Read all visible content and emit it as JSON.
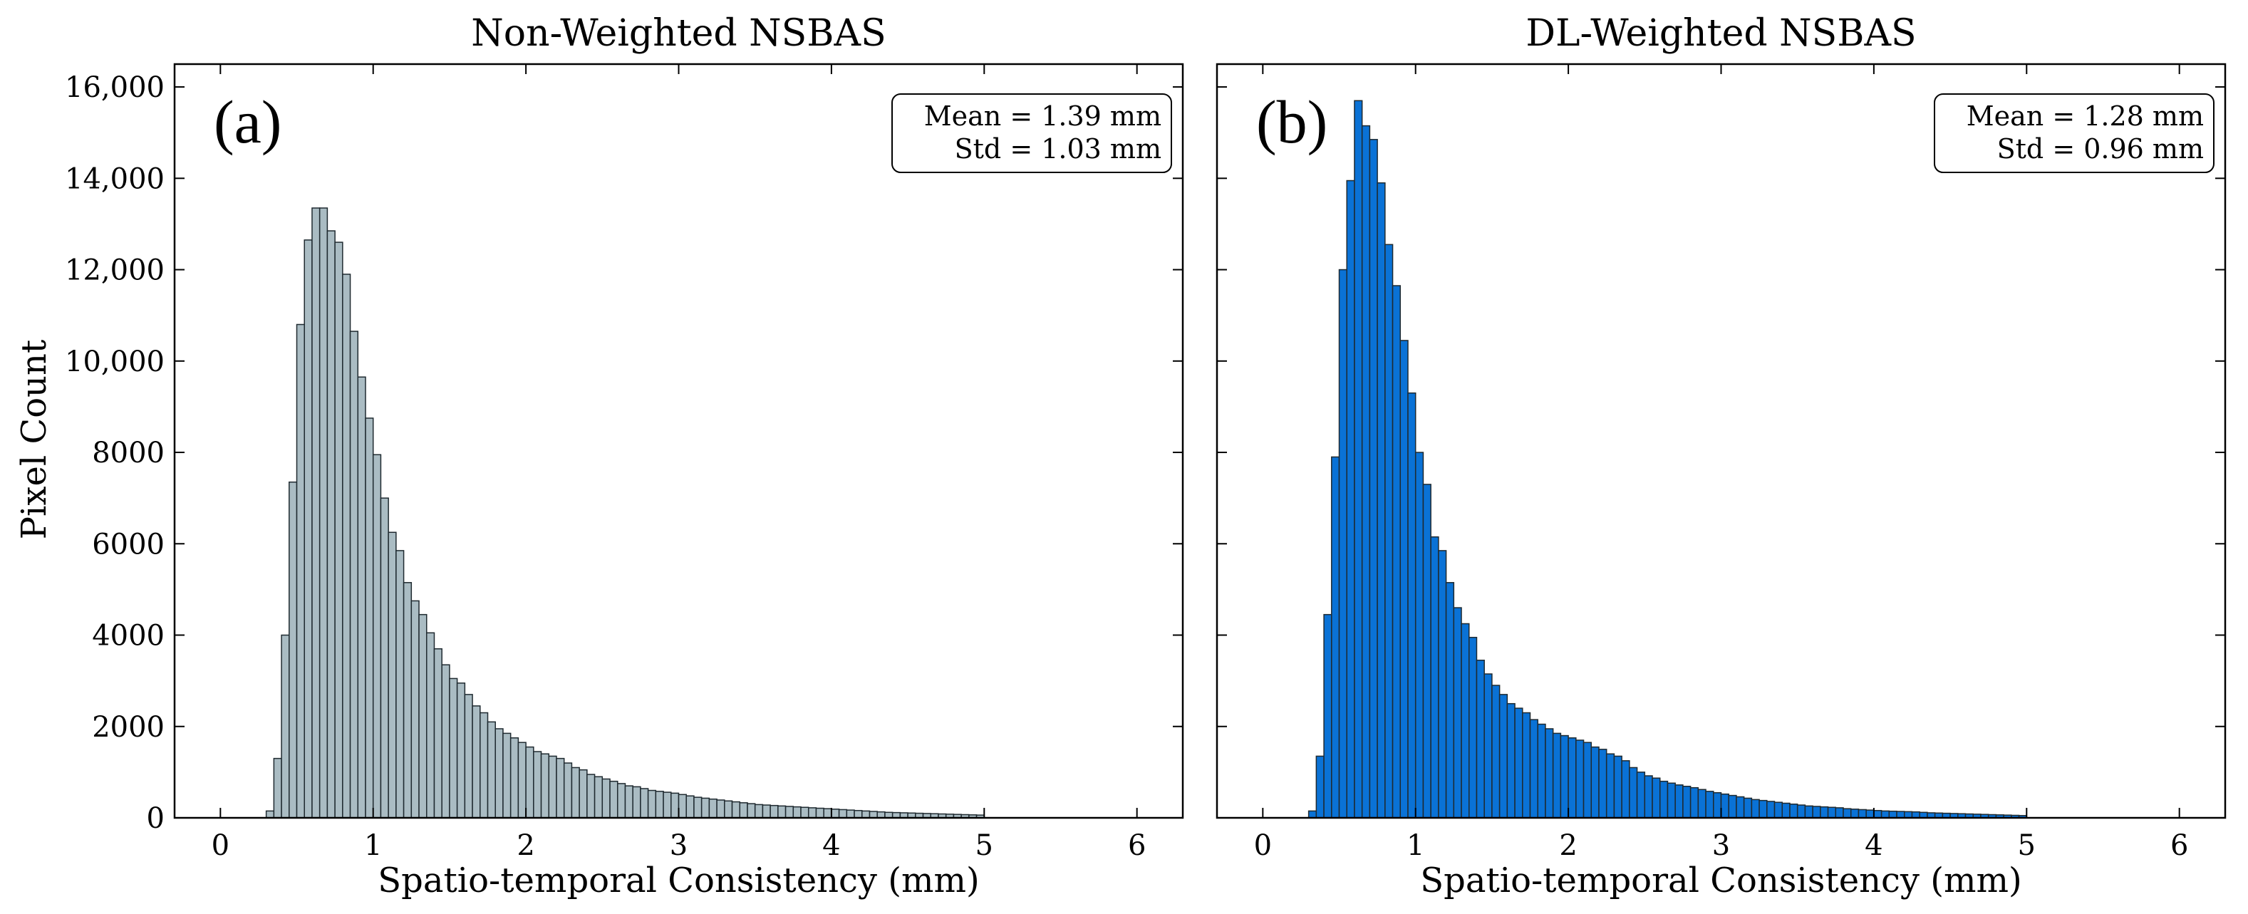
{
  "figure": {
    "ylabel": "Pixel Count"
  },
  "chart_data": [
    {
      "type": "bar",
      "title": "Non-Weighted NSBAS",
      "panel_label": "(a)",
      "xlabel": "Spatio-temporal Consistency (mm)",
      "ylabel": "Pixel Count",
      "xlim": [
        -0.3,
        6.3
      ],
      "ylim": [
        0,
        16500
      ],
      "xticks": [
        "0",
        "1",
        "2",
        "3",
        "4",
        "5",
        "6"
      ],
      "yticks": [
        "0",
        "2000",
        "4000",
        "6000",
        "8000",
        "10,000",
        "12,000",
        "14,000",
        "16,000"
      ],
      "stats_box": {
        "mean": "Mean = 1.39 mm",
        "std": "Std = 1.03 mm"
      },
      "bar_color": "#aabcc3",
      "bin_start": 0.3,
      "bin_width": 0.05,
      "values": [
        150,
        1300,
        4000,
        7350,
        10800,
        12650,
        13350,
        13350,
        12850,
        12600,
        11900,
        10650,
        9650,
        8750,
        7950,
        7000,
        6250,
        5850,
        5150,
        4750,
        4450,
        4050,
        3700,
        3350,
        3050,
        2950,
        2700,
        2450,
        2300,
        2100,
        1950,
        1850,
        1750,
        1650,
        1550,
        1450,
        1400,
        1350,
        1300,
        1200,
        1100,
        1050,
        950,
        900,
        850,
        800,
        750,
        700,
        680,
        640,
        600,
        580,
        560,
        540,
        510,
        480,
        450,
        430,
        410,
        390,
        370,
        350,
        330,
        310,
        290,
        280,
        270,
        260,
        250,
        240,
        230,
        220,
        210,
        200,
        190,
        180,
        170,
        160,
        150,
        140,
        130,
        120,
        115,
        110,
        105,
        100,
        95,
        90,
        85,
        80,
        75,
        70,
        65,
        60
      ]
    },
    {
      "type": "bar",
      "title": "DL-Weighted NSBAS",
      "panel_label": "(b)",
      "xlabel": "Spatio-temporal Consistency (mm)",
      "xlim": [
        -0.3,
        6.3
      ],
      "ylim": [
        0,
        16500
      ],
      "xticks": [
        "0",
        "1",
        "2",
        "3",
        "4",
        "5",
        "6"
      ],
      "stats_box": {
        "mean": "Mean = 1.28 mm",
        "std": "Std = 0.96 mm"
      },
      "bar_color": "#0a72d6",
      "bin_start": 0.3,
      "bin_width": 0.05,
      "values": [
        150,
        1350,
        4450,
        7900,
        12000,
        13950,
        15700,
        15150,
        14850,
        13900,
        12550,
        11650,
        10450,
        9300,
        8000,
        7300,
        6150,
        5850,
        5150,
        4600,
        4250,
        3950,
        3450,
        3150,
        2900,
        2700,
        2500,
        2400,
        2300,
        2150,
        2050,
        1950,
        1850,
        1800,
        1750,
        1700,
        1650,
        1550,
        1500,
        1400,
        1350,
        1250,
        1100,
        1000,
        920,
        870,
        800,
        760,
        720,
        690,
        660,
        620,
        580,
        550,
        520,
        490,
        460,
        430,
        400,
        380,
        360,
        340,
        320,
        300,
        280,
        260,
        250,
        240,
        230,
        220,
        200,
        190,
        180,
        170,
        160,
        150,
        145,
        140,
        135,
        130,
        120,
        110,
        105,
        100,
        95,
        90,
        85,
        80,
        75,
        70,
        65,
        60,
        55,
        50
      ]
    }
  ]
}
